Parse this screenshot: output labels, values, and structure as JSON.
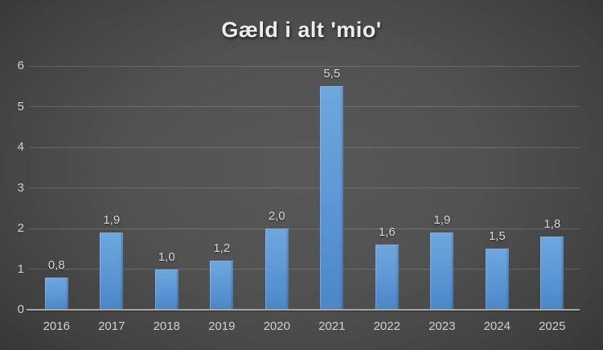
{
  "chart_data": {
    "type": "bar",
    "title": "Gæld i alt 'mio'",
    "categories": [
      "2016",
      "2017",
      "2018",
      "2019",
      "2020",
      "2021",
      "2022",
      "2023",
      "2024",
      "2025"
    ],
    "values": [
      0.8,
      1.9,
      1.0,
      1.2,
      2.0,
      5.5,
      1.6,
      1.9,
      1.5,
      1.8
    ],
    "value_labels": [
      "0,8",
      "1,9",
      "1,0",
      "1,2",
      "2,0",
      "5,5",
      "1,6",
      "1,9",
      "1,5",
      "1,8"
    ],
    "xlabel": "",
    "ylabel": "",
    "ylim": [
      0,
      6
    ],
    "ytick_step": 1,
    "ytick_labels": [
      "0",
      "1",
      "2",
      "3",
      "4",
      "5",
      "6"
    ],
    "grid": true,
    "legend": false,
    "colors": {
      "bar_top": "#6fa7de",
      "bar_bottom": "#4b86c7",
      "background_center": "#565656",
      "background_edge": "#262626",
      "gridline": "#6e6e6e",
      "axis_line": "#a8a8a8",
      "tick_text": "#cfcfcf",
      "value_text": "#d8d8d8",
      "title_text": "#ececec"
    }
  }
}
